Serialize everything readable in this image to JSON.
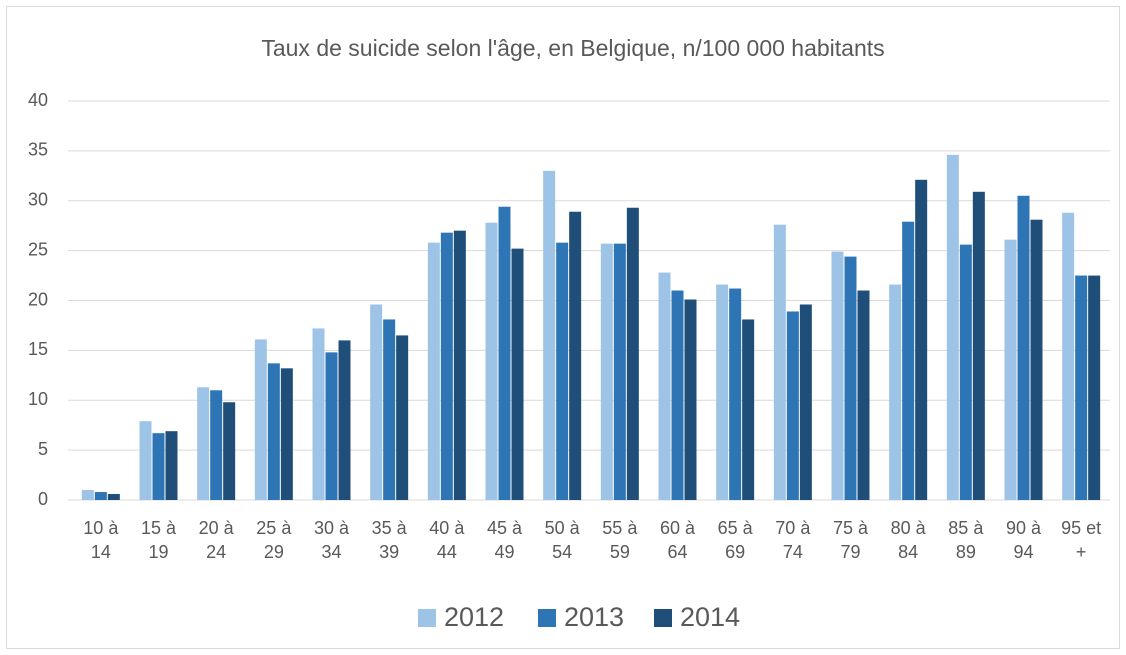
{
  "chart_data": {
    "type": "bar",
    "title": "Taux de suicide selon l'âge, en Belgique, n/100 000 habitants",
    "categories": [
      "10 à 14",
      "15 à 19",
      "20 à 24",
      "25 à 29",
      "30 à 34",
      "35 à 39",
      "40 à 44",
      "45 à 49",
      "50 à 54",
      "55 à 59",
      "60 à 64",
      "65 à 69",
      "70 à 74",
      "75 à 79",
      "80 à 84",
      "85 à 89",
      "90 à 94",
      "95 et +"
    ],
    "series": [
      {
        "name": "2012",
        "color": "#9dc3e6",
        "values": [
          1.0,
          7.9,
          11.3,
          16.1,
          17.2,
          19.6,
          25.8,
          27.8,
          33.0,
          25.7,
          22.8,
          21.6,
          27.6,
          24.9,
          21.6,
          34.6,
          26.1,
          28.8
        ]
      },
      {
        "name": "2013",
        "color": "#2e75b6",
        "values": [
          0.8,
          6.7,
          11.0,
          13.7,
          14.8,
          18.1,
          26.8,
          29.4,
          25.8,
          25.7,
          21.0,
          21.2,
          18.9,
          24.4,
          27.9,
          25.6,
          30.5,
          22.5
        ]
      },
      {
        "name": "2014",
        "color": "#1f4e79",
        "values": [
          0.6,
          6.9,
          9.8,
          13.2,
          16.0,
          16.5,
          27.0,
          25.2,
          28.9,
          29.3,
          20.1,
          18.1,
          19.6,
          21.0,
          32.1,
          30.9,
          28.1,
          22.5
        ]
      }
    ],
    "ylim": [
      0,
      40
    ],
    "yticks": [
      0,
      5,
      10,
      15,
      20,
      25,
      30,
      35,
      40
    ],
    "grid": true,
    "legend": "bottom"
  }
}
